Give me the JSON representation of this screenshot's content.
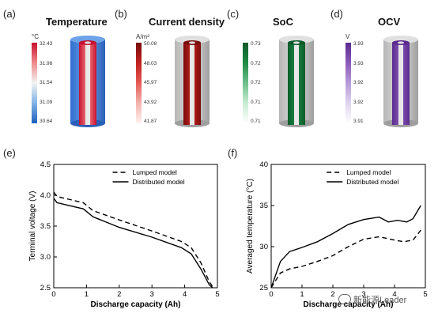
{
  "top_panels": [
    {
      "letter": "(a)",
      "title": "Temperature",
      "unit": "°C",
      "ticks": [
        "32.43",
        "31.98",
        "31.54",
        "31.09",
        "30.64"
      ],
      "cb_colors": [
        "#c8102e",
        "#f08a8a",
        "#f4f4f4",
        "#7fb2e5",
        "#1f5fbf"
      ]
    },
    {
      "letter": "(b)",
      "title": "Current density",
      "unit": "A/m²",
      "ticks": [
        "50.08",
        "48.03",
        "45.97",
        "43.92",
        "41.87"
      ],
      "cb_colors": [
        "#7a0c0c",
        "#c0221f",
        "#e65a55",
        "#f3b3ad",
        "#fff2ee"
      ]
    },
    {
      "letter": "(c)",
      "title": "SoC",
      "unit": "",
      "ticks": [
        "0.73",
        "0.72",
        "0.72",
        "0.71",
        "0.71"
      ],
      "cb_colors": [
        "#0a5a2a",
        "#1f8a45",
        "#6cc08b",
        "#c9ecd4",
        "#ffffff"
      ]
    },
    {
      "letter": "(d)",
      "title": "OCV",
      "unit": "V",
      "ticks": [
        "3.93",
        "3.93",
        "3.92",
        "3.92",
        "3.91"
      ],
      "cb_colors": [
        "#5a2a8f",
        "#8a5ab8",
        "#b79ad8",
        "#e0d4ef",
        "#ffffff"
      ]
    }
  ],
  "chart_data": [
    {
      "type": "line",
      "panel": "(e)",
      "xlabel": "Discharge capacity (Ah)",
      "ylabel": "Terminal voltage (V)",
      "xlim": [
        0,
        5
      ],
      "ylim": [
        2.5,
        4.5
      ],
      "xticks": [
        "0",
        "1",
        "2",
        "3",
        "4",
        "5"
      ],
      "yticks": [
        "2.5",
        "3.0",
        "3.5",
        "4.0",
        "4.5"
      ],
      "legend_position": "top-right",
      "series": [
        {
          "name": "Lumped model",
          "style": "dashed",
          "x": [
            0,
            0.1,
            0.5,
            0.9,
            1.2,
            2,
            3,
            3.9,
            4.2,
            4.5,
            4.75,
            4.85
          ],
          "y": [
            4.05,
            3.98,
            3.93,
            3.88,
            3.75,
            3.6,
            3.42,
            3.25,
            3.15,
            2.9,
            2.6,
            2.52
          ]
        },
        {
          "name": "Distributed model",
          "style": "solid",
          "x": [
            0,
            0.1,
            0.5,
            0.9,
            1.2,
            2,
            3,
            3.9,
            4.2,
            4.5,
            4.75,
            4.85
          ],
          "y": [
            3.95,
            3.88,
            3.83,
            3.78,
            3.65,
            3.48,
            3.32,
            3.15,
            3.05,
            2.8,
            2.55,
            2.5
          ]
        }
      ]
    },
    {
      "type": "line",
      "panel": "(f)",
      "xlabel": "Discharge capacity (Ah)",
      "ylabel": "Averaged temperature (°C)",
      "xlim": [
        0,
        5
      ],
      "ylim": [
        25,
        40
      ],
      "xticks": [
        "0",
        "1",
        "2",
        "3",
        "4",
        "5"
      ],
      "yticks": [
        "25",
        "30",
        "35",
        "40"
      ],
      "legend_position": "top-right",
      "series": [
        {
          "name": "Lumped model",
          "style": "dashed",
          "x": [
            0,
            0.3,
            0.6,
            1,
            1.5,
            2,
            2.5,
            3,
            3.5,
            4,
            4.3,
            4.6,
            4.85
          ],
          "y": [
            25,
            26.8,
            27.3,
            27.6,
            28.2,
            28.9,
            30,
            30.9,
            31.2,
            30.8,
            30.6,
            30.8,
            32
          ]
        },
        {
          "name": "Distributed model",
          "style": "solid",
          "x": [
            0,
            0.3,
            0.6,
            1,
            1.5,
            2,
            2.5,
            3,
            3.5,
            3.8,
            4.1,
            4.4,
            4.6,
            4.85
          ],
          "y": [
            25,
            28.2,
            29.4,
            29.9,
            30.6,
            31.6,
            32.7,
            33.3,
            33.6,
            33.0,
            33.2,
            33.0,
            33.4,
            35
          ]
        }
      ]
    }
  ],
  "watermark": "新能源Leader"
}
